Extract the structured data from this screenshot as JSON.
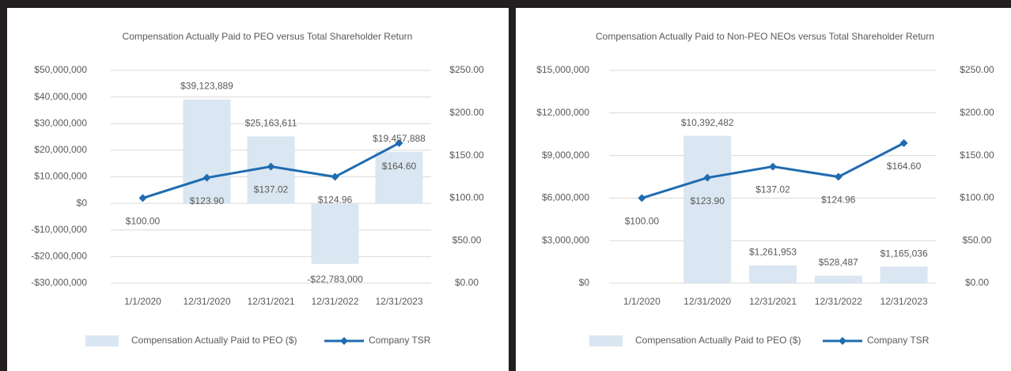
{
  "chart_data": [
    {
      "type": "bar-line",
      "title": "Compensation Actually Paid to PEO versus Total Shareholder Return",
      "categories": [
        "1/1/2020",
        "12/31/2020",
        "12/31/2021",
        "12/31/2022",
        "12/31/2023"
      ],
      "series": [
        {
          "name": "Compensation Actually Paid to PEO ($)",
          "color": "#dae6f1",
          "type": "bar",
          "values": [
            null,
            39123889,
            25163611,
            -22783000,
            19457888
          ],
          "value_labels": [
            null,
            "$39,123,889",
            "$25,163,611",
            "-$22,783,000",
            "$19,457,888"
          ]
        },
        {
          "name": "Company TSR",
          "color": "#1f6cb0",
          "type": "line",
          "axis": "y2",
          "values": [
            100,
            123.9,
            137.02,
            124.96,
            164.6
          ],
          "value_labels": [
            "$100.00",
            "$123.90",
            "$137.02",
            "$124.96",
            "$164.60"
          ]
        }
      ],
      "ylim": [
        -30000000,
        50000000
      ],
      "yticks": [
        {
          "value": -30000000,
          "label": "-$30,000,000"
        },
        {
          "value": -20000000,
          "label": "-$20,000,000"
        },
        {
          "value": -10000000,
          "label": "-$10,000,000"
        },
        {
          "value": 0,
          "label": "$0"
        },
        {
          "value": 10000000,
          "label": "$10,000,000"
        },
        {
          "value": 20000000,
          "label": "$20,000,000"
        },
        {
          "value": 30000000,
          "label": "$30,000,000"
        },
        {
          "value": 40000000,
          "label": "$40,000,000"
        },
        {
          "value": 50000000,
          "label": "$50,000,000"
        }
      ],
      "y2lim": [
        0,
        250
      ],
      "y2ticks": [
        {
          "value": 0,
          "label": "$0.00"
        },
        {
          "value": 50,
          "label": "$50.00"
        },
        {
          "value": 100,
          "label": "$100.00"
        },
        {
          "value": 150,
          "label": "$150.00"
        },
        {
          "value": 200,
          "label": "$200.00"
        },
        {
          "value": 250,
          "label": "$250.00"
        }
      ],
      "grid": true,
      "legend": "bottom"
    },
    {
      "type": "bar-line",
      "title": "Compensation Actually Paid to Non-PEO NEOs versus Total Shareholder Return",
      "categories": [
        "1/1/2020",
        "12/31/2020",
        "12/31/2021",
        "12/31/2022",
        "12/31/2023"
      ],
      "series": [
        {
          "name": "Compensation Actually Paid to PEO ($)",
          "color": "#dae6f1",
          "type": "bar",
          "values": [
            null,
            10392482,
            1261953,
            528487,
            1165036
          ],
          "value_labels": [
            null,
            "$10,392,482",
            "$1,261,953",
            "$528,487",
            "$1,165,036"
          ]
        },
        {
          "name": "Company TSR",
          "color": "#1f6cb0",
          "type": "line",
          "axis": "y2",
          "values": [
            100,
            123.9,
            137.02,
            124.96,
            164.6
          ],
          "value_labels": [
            "$100.00",
            "$123.90",
            "$137.02",
            "$124.96",
            "$164.60"
          ]
        }
      ],
      "ylim": [
        0,
        15000000
      ],
      "yticks": [
        {
          "value": 0,
          "label": "$0"
        },
        {
          "value": 3000000,
          "label": "$3,000,000"
        },
        {
          "value": 6000000,
          "label": "$6,000,000"
        },
        {
          "value": 9000000,
          "label": "$9,000,000"
        },
        {
          "value": 12000000,
          "label": "$12,000,000"
        },
        {
          "value": 15000000,
          "label": "$15,000,000"
        }
      ],
      "y2lim": [
        0,
        250
      ],
      "y2ticks": [
        {
          "value": 0,
          "label": "$0.00"
        },
        {
          "value": 50,
          "label": "$50.00"
        },
        {
          "value": 100,
          "label": "$100.00"
        },
        {
          "value": 150,
          "label": "$150.00"
        },
        {
          "value": 200,
          "label": "$200.00"
        },
        {
          "value": 250,
          "label": "$250.00"
        }
      ],
      "grid": true,
      "legend": "bottom"
    }
  ]
}
